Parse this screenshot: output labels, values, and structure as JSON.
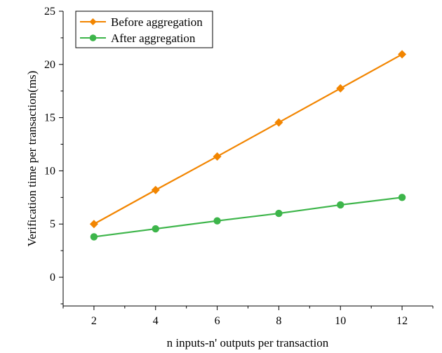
{
  "chart_data": {
    "type": "line",
    "title": "",
    "xlabel": "n inputs-n' outputs per transaction",
    "ylabel": "Verification time per transaction(ms)",
    "x": [
      2,
      4,
      6,
      8,
      10,
      12
    ],
    "xticks": [
      "2",
      "4",
      "6",
      "8",
      "10",
      "12"
    ],
    "yticks": [
      "0",
      "5",
      "10",
      "15",
      "20",
      "25"
    ],
    "xlim": [
      1,
      13
    ],
    "ylim": [
      -2.7,
      25
    ],
    "grid": false,
    "legend_position": "top-left",
    "series": [
      {
        "name": "Before aggregation",
        "values": [
          5.0,
          8.2,
          11.35,
          14.55,
          17.75,
          20.95
        ],
        "color": "#F28500",
        "marker": "diamond"
      },
      {
        "name": "After aggregation",
        "values": [
          3.8,
          4.55,
          5.3,
          6.0,
          6.8,
          7.5
        ],
        "color": "#3DB54A",
        "marker": "circle"
      }
    ]
  }
}
